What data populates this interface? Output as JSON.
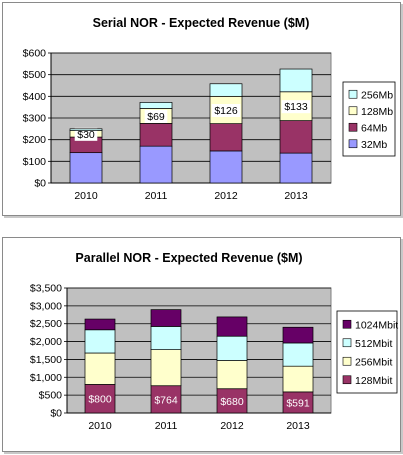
{
  "chart_data": [
    {
      "type": "bar",
      "stacked": true,
      "title": "Serial NOR - Expected Revenue ($M)",
      "categories": [
        "2010",
        "2011",
        "2012",
        "2013"
      ],
      "y_ticks": [
        "$0",
        "$100",
        "$200",
        "$300",
        "$400",
        "$500",
        "$600"
      ],
      "ylim": [
        0,
        600
      ],
      "grid": true,
      "plot_background": "#c0c0c0",
      "series": [
        {
          "name": "32Mb",
          "color": "#9999ff",
          "values": [
            140,
            170,
            148,
            138
          ]
        },
        {
          "name": "64Mb",
          "color": "#993366",
          "values": [
            72,
            105,
            126,
            150
          ]
        },
        {
          "name": "128Mb",
          "color": "#ffffcc",
          "values": [
            30,
            69,
            126,
            133
          ]
        },
        {
          "name": "256Mb",
          "color": "#ccffff",
          "values": [
            8,
            28,
            58,
            105
          ]
        }
      ],
      "data_labels": [
        {
          "series": "128Mb",
          "labels": [
            "$30",
            "$69",
            "$126",
            "$133"
          ]
        }
      ],
      "legend": "right"
    },
    {
      "type": "bar",
      "stacked": true,
      "title": "Parallel NOR - Expected Revenue ($M)",
      "categories": [
        "2010",
        "2011",
        "2012",
        "2013"
      ],
      "y_ticks": [
        "$0",
        "$500",
        "$1,000",
        "$1,500",
        "$2,000",
        "$2,500",
        "$3,000",
        "$3,500"
      ],
      "ylim": [
        0,
        3500
      ],
      "grid": true,
      "plot_background": "#c0c0c0",
      "series": [
        {
          "name": "128Mbit",
          "color": "#993366",
          "values": [
            800,
            764,
            680,
            591
          ]
        },
        {
          "name": "256Mbit",
          "color": "#ffffcc",
          "values": [
            880,
            1010,
            790,
            720
          ]
        },
        {
          "name": "512Mbit",
          "color": "#ccffff",
          "values": [
            650,
            650,
            680,
            650
          ]
        },
        {
          "name": "1024Mbit",
          "color": "#660066",
          "values": [
            300,
            470,
            540,
            440
          ]
        }
      ],
      "data_labels": [
        {
          "series": "128Mbit",
          "labels": [
            "$800",
            "$764",
            "$680",
            "$591"
          ]
        }
      ],
      "legend": "right"
    }
  ]
}
